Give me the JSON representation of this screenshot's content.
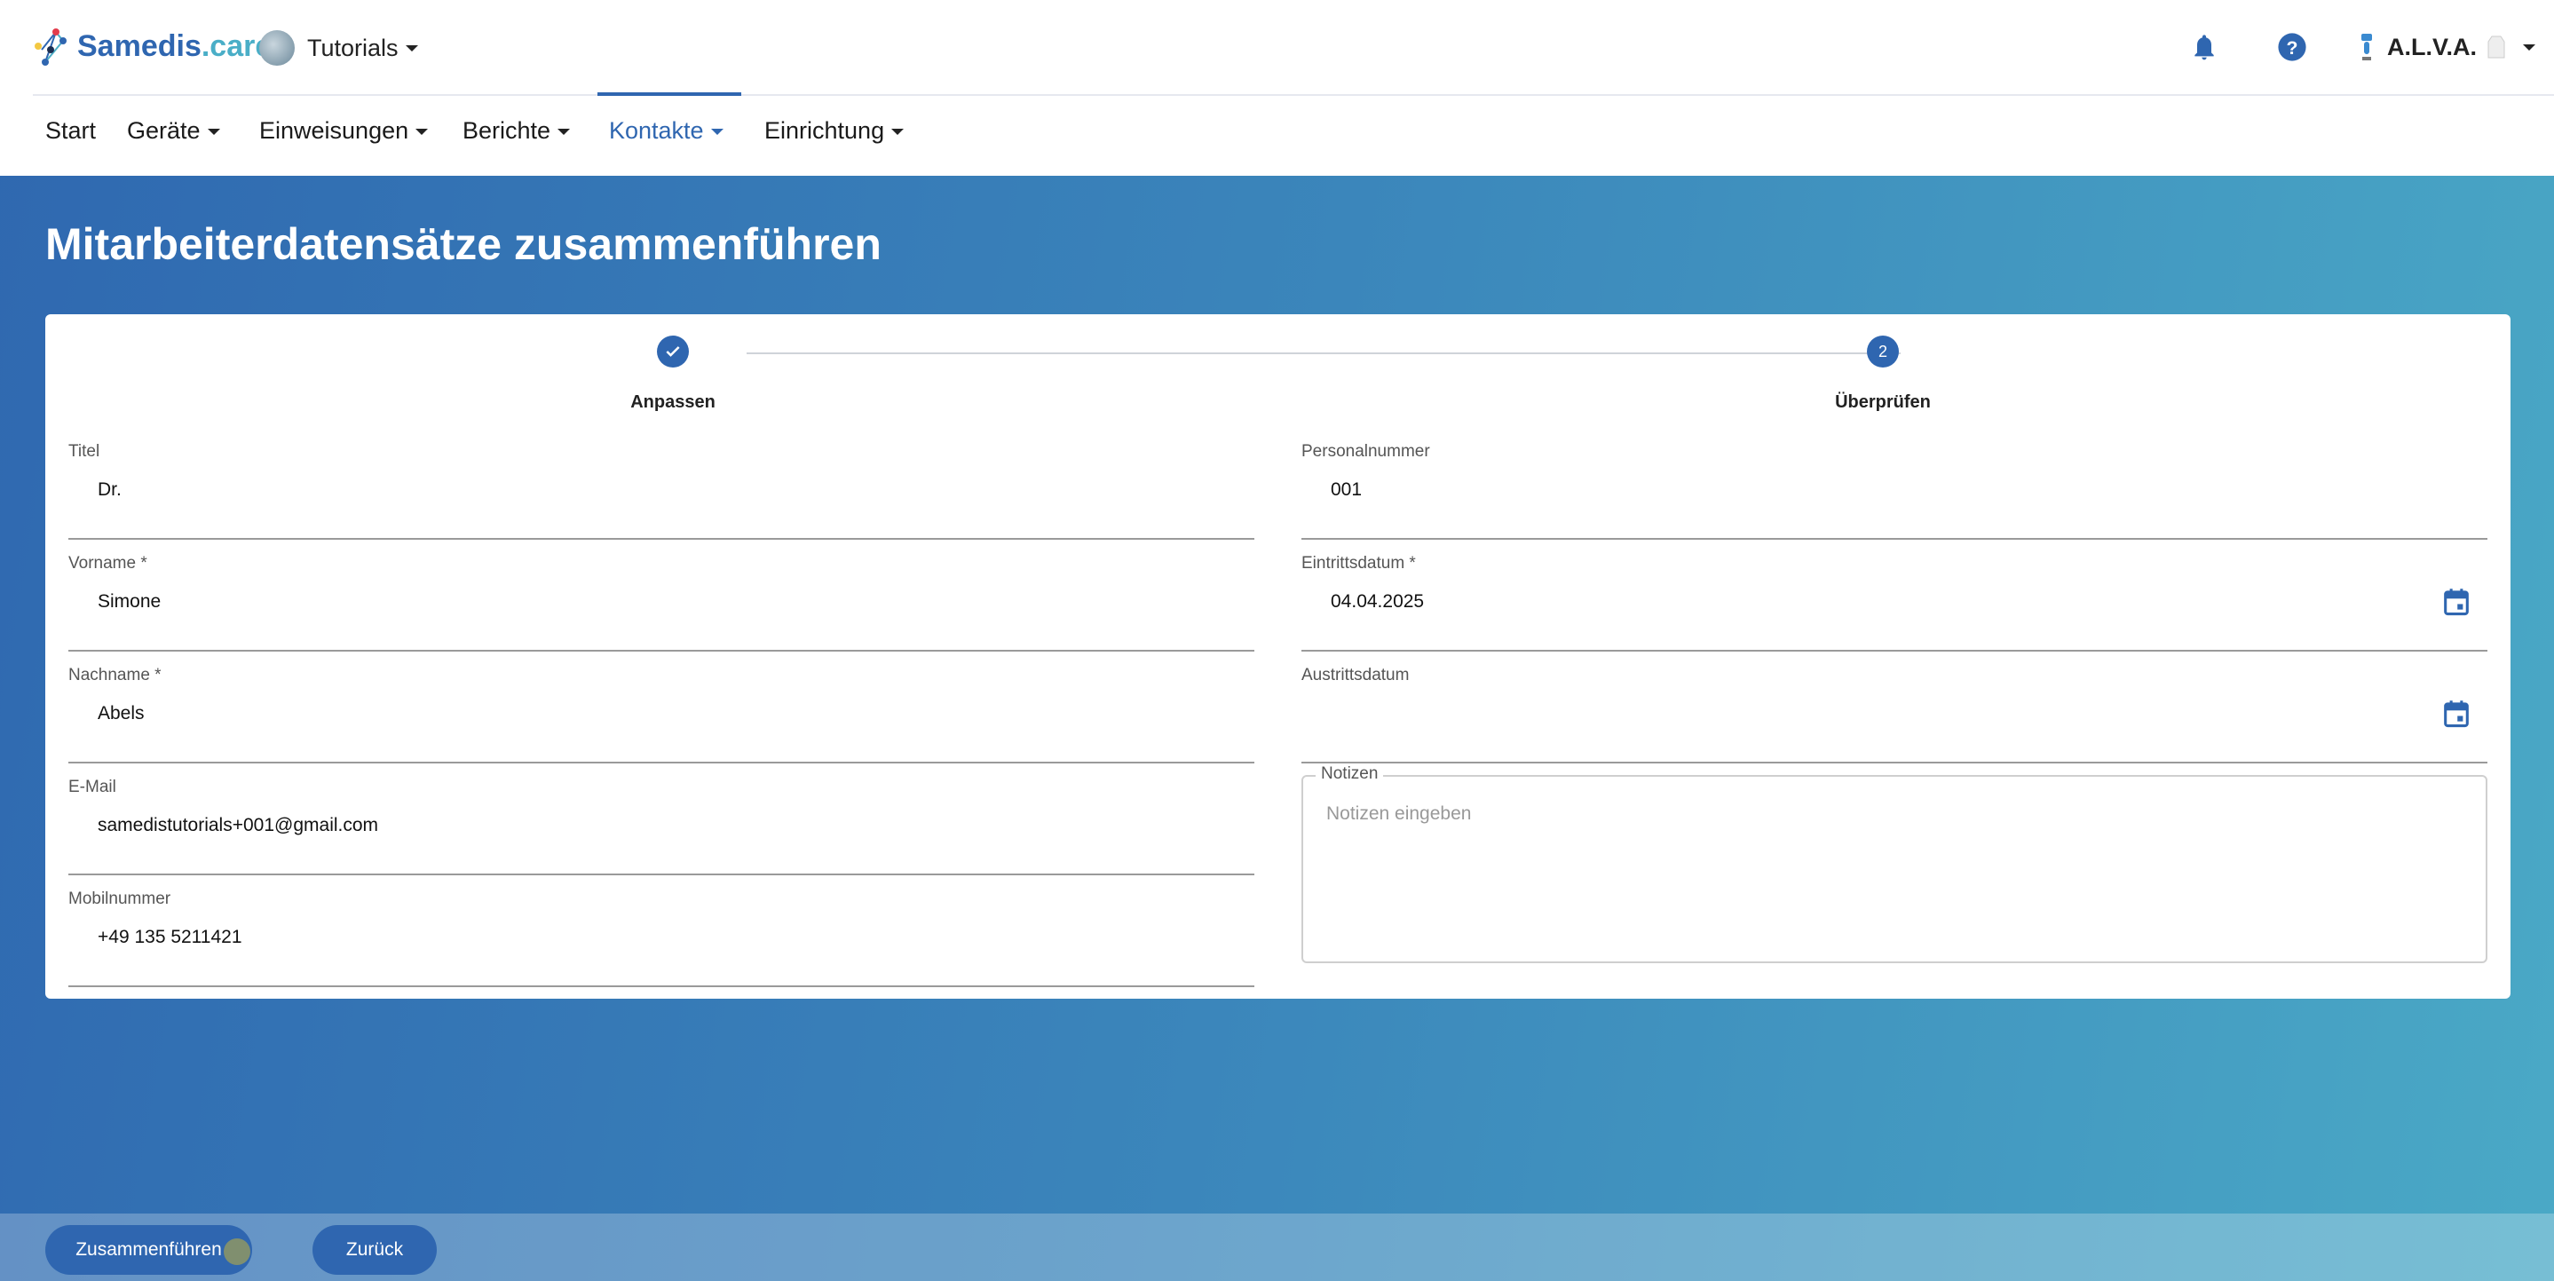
{
  "header": {
    "brand_part1": "Samedis",
    "brand_part2": ".care",
    "org": "Tutorials",
    "user": "A.L.V.A.",
    "icons": [
      "bell-icon",
      "help-icon",
      "robot-avatar-icon",
      "lab-coat-icon"
    ]
  },
  "nav": {
    "items": [
      {
        "label": "Start"
      },
      {
        "label": "Geräte"
      },
      {
        "label": "Einweisungen"
      },
      {
        "label": "Berichte"
      },
      {
        "label": "Kontakte",
        "active": true
      },
      {
        "label": "Einrichtung"
      }
    ]
  },
  "page": {
    "title": "Mitarbeiterdatensätze zusammenführen"
  },
  "stepper": {
    "steps": [
      {
        "label": "Anpassen",
        "state": "done"
      },
      {
        "label": "Überprüfen",
        "number": "2",
        "state": "active"
      }
    ]
  },
  "form": {
    "left": [
      {
        "label": "Titel",
        "value": "Dr."
      },
      {
        "label": "Vorname *",
        "value": "Simone"
      },
      {
        "label": "Nachname *",
        "value": "Abels"
      },
      {
        "label": "E-Mail",
        "value": "samedistutorials+001@gmail.com"
      },
      {
        "label": "Mobilnummer",
        "value": "+49 135 5211421"
      }
    ],
    "right": [
      {
        "label": "Personalnummer",
        "value": "001"
      },
      {
        "label": "Eintrittsdatum *",
        "value": "04.04.2025"
      },
      {
        "label": "Austrittsdatum",
        "value": ""
      }
    ],
    "notes": {
      "label": "Notizen",
      "placeholder": "Notizen eingeben"
    }
  },
  "actions": {
    "merge": "Zusammenführen",
    "back": "Zurück"
  },
  "colors": {
    "primary": "#2f66b0",
    "accent": "#4aaec7"
  }
}
